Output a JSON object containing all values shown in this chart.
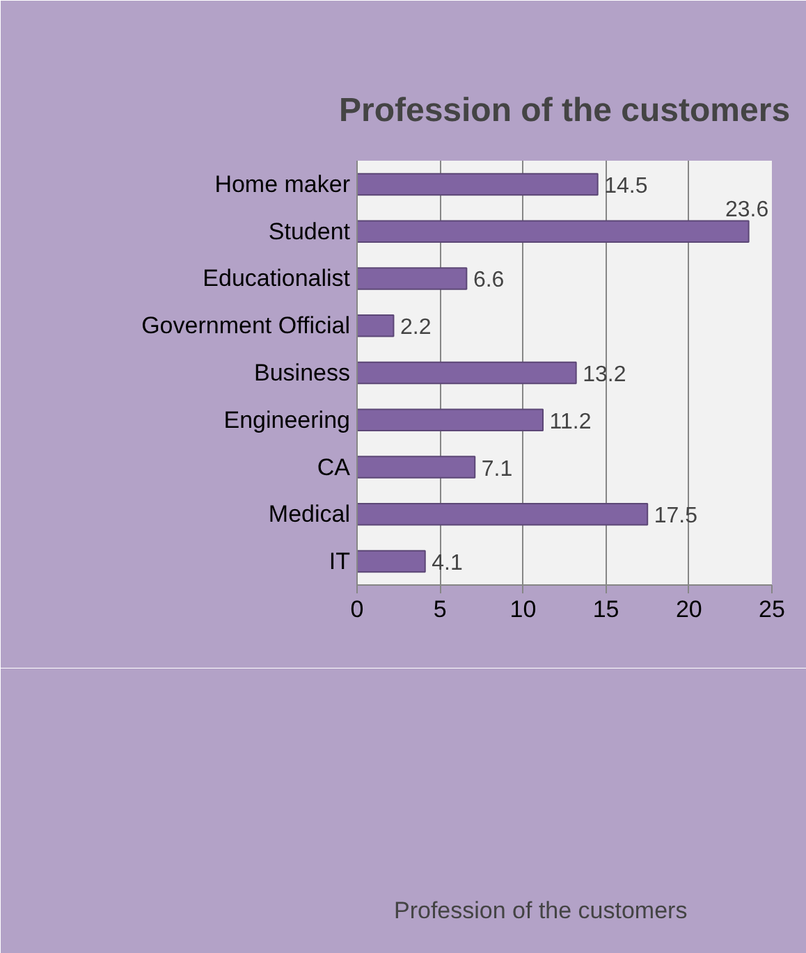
{
  "chart_data": {
    "type": "bar",
    "orientation": "horizontal",
    "title": "Profession of the customers",
    "categories": [
      "Home maker",
      "Student",
      "Educationalist",
      "Government Official",
      "Business",
      "Engineering",
      "CA",
      "Medical",
      "IT"
    ],
    "series": [
      {
        "name": "Profession of the customers",
        "color": "#8064a2",
        "values": [
          14.5,
          23.6,
          6.6,
          2.2,
          13.2,
          11.2,
          7.1,
          17.5,
          4.1
        ]
      }
    ],
    "xlim": [
      0,
      25
    ],
    "xticks": [
      0,
      5,
      10,
      15,
      20,
      25
    ],
    "grid": "x",
    "legend": "bottom",
    "data_labels": true
  }
}
